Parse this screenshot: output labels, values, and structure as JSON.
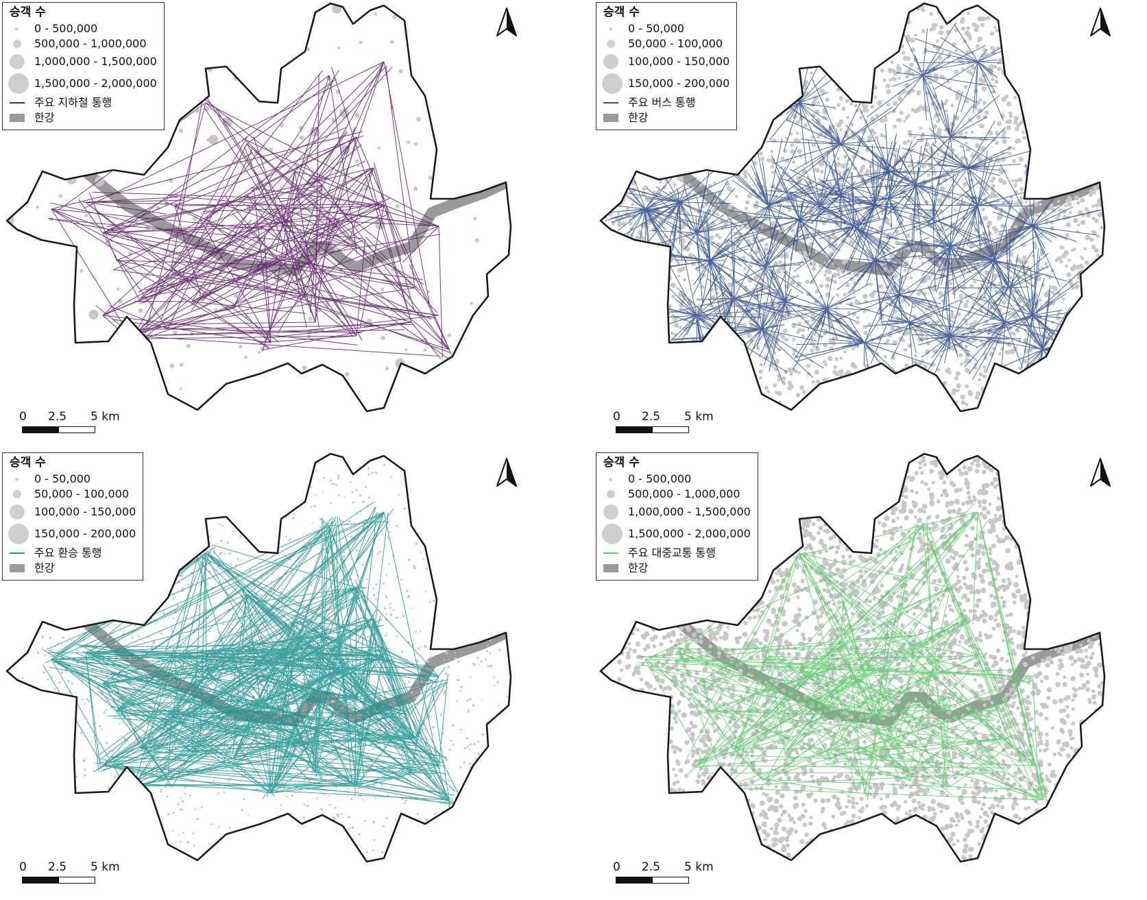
{
  "panels": [
    {
      "legend_title": "승객 수",
      "size_classes": [
        "0 - 500,000",
        "500,000 - 1,000,000",
        "1,000,000 - 1,500,000",
        "1,500,000 - 2,000,000"
      ],
      "flow_label": "주요 지하철 통행",
      "flow_color": "#5b1a66",
      "river_label": "한강",
      "flow_density": "medium",
      "point_density": "sparse"
    },
    {
      "legend_title": "승객 수",
      "size_classes": [
        "0 - 50,000",
        "50,000 - 100,000",
        "100,000 - 150,000",
        "150,000 - 200,000"
      ],
      "flow_label": "주요 버스 통행",
      "flow_color": "#2f4d8f",
      "river_label": "한강",
      "flow_density": "very high",
      "point_density": "dense"
    },
    {
      "legend_title": "승객 수",
      "size_classes": [
        "0 - 50,000",
        "50,000 - 100,000",
        "100,000 - 150,000",
        "150,000 - 200,000"
      ],
      "flow_label": "주요 환승 통행",
      "flow_color": "#1f9490",
      "river_label": "한강",
      "flow_density": "high",
      "point_density": "medium"
    },
    {
      "legend_title": "승객 수",
      "size_classes": [
        "0 - 500,000",
        "500,000 - 1,000,000",
        "1,000,000 - 1,500,000",
        "1,500,000 - 2,000,000"
      ],
      "flow_label": "주요 대중교통 통행",
      "flow_color": "#5ccc6a",
      "river_label": "한강",
      "flow_density": "medium",
      "point_density": "very dense"
    }
  ],
  "scale_bar": {
    "labels": [
      "0",
      "2.5",
      "5 km"
    ]
  },
  "colors": {
    "boundary": "#1a1a1a",
    "river": "#9a9a9a",
    "points": "#c8c8c8",
    "background": "#ffffff"
  },
  "icons": {
    "north_arrow": "north-arrow-icon"
  }
}
